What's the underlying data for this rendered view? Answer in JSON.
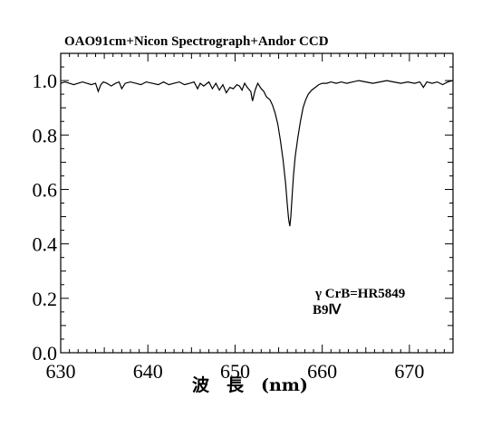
{
  "chart_data": {
    "type": "line",
    "title": "OAO91cm+Nicon Spectrograph+Andor CCD",
    "xlabel": "波　長　(nm)",
    "ylabel": "",
    "xlim": [
      630,
      675
    ],
    "ylim": [
      0.0,
      1.1
    ],
    "xticks": [
      630,
      640,
      650,
      660,
      670
    ],
    "xtick_labels": [
      "630",
      "640",
      "650",
      "660",
      "670"
    ],
    "yticks": [
      0.0,
      0.2,
      0.4,
      0.6,
      0.8,
      1.0
    ],
    "ytick_labels": [
      "0.0",
      "0.2",
      "0.4",
      "0.6",
      "0.8",
      "1.0"
    ],
    "grid": false,
    "annotations": [
      "γ CrB=HR5849",
      "B9Ⅳ"
    ],
    "series": [
      {
        "color": "#000000",
        "x": [
          630.0,
          630.5,
          631.0,
          631.5,
          632.0,
          632.5,
          633.0,
          633.5,
          634.0,
          634.3,
          634.6,
          634.9,
          635.3,
          635.8,
          636.3,
          636.7,
          637.0,
          637.4,
          638.0,
          638.6,
          639.2,
          639.8,
          640.5,
          641.2,
          641.8,
          642.4,
          643.0,
          643.6,
          644.2,
          644.8,
          645.3,
          645.7,
          646.0,
          646.4,
          647.0,
          647.4,
          647.8,
          648.2,
          648.6,
          649.0,
          649.4,
          649.8,
          650.2,
          650.5,
          650.8,
          651.1,
          651.4,
          651.8,
          652.0,
          652.3,
          652.6,
          653.0,
          653.3,
          653.6,
          654.0,
          654.3,
          654.6,
          654.9,
          655.2,
          655.5,
          655.8,
          656.0,
          656.15,
          656.28,
          656.4,
          656.55,
          656.7,
          656.9,
          657.2,
          657.5,
          657.8,
          658.1,
          658.4,
          658.8,
          659.2,
          659.6,
          660.0,
          660.5,
          661.0,
          661.6,
          662.2,
          662.8,
          663.5,
          664.2,
          665.0,
          665.8,
          666.6,
          667.4,
          668.2,
          669.0,
          669.8,
          670.6,
          671.2,
          671.6,
          672.0,
          672.6,
          673.2,
          673.8,
          674.4,
          675.0
        ],
        "y": [
          0.99,
          0.995,
          0.99,
          0.985,
          0.99,
          0.995,
          0.99,
          0.985,
          0.99,
          0.96,
          0.985,
          0.995,
          0.99,
          0.98,
          0.99,
          0.995,
          0.97,
          0.99,
          0.995,
          0.99,
          0.985,
          0.995,
          0.99,
          0.985,
          0.995,
          0.985,
          0.99,
          0.995,
          0.985,
          0.99,
          0.995,
          0.97,
          0.99,
          0.98,
          0.995,
          0.97,
          0.99,
          0.965,
          0.985,
          0.955,
          0.975,
          0.97,
          0.985,
          0.98,
          0.965,
          0.99,
          0.975,
          0.96,
          0.925,
          0.965,
          0.99,
          0.97,
          0.96,
          0.94,
          0.93,
          0.91,
          0.88,
          0.84,
          0.78,
          0.71,
          0.62,
          0.54,
          0.49,
          0.465,
          0.5,
          0.58,
          0.65,
          0.72,
          0.79,
          0.85,
          0.9,
          0.93,
          0.95,
          0.965,
          0.975,
          0.985,
          0.99,
          0.99,
          0.995,
          0.99,
          0.995,
          0.99,
          0.995,
          1.0,
          0.995,
          0.99,
          0.995,
          1.0,
          0.995,
          0.99,
          0.995,
          0.99,
          0.995,
          0.975,
          0.995,
          0.99,
          0.995,
          0.985,
          0.995,
          1.0
        ]
      }
    ]
  }
}
